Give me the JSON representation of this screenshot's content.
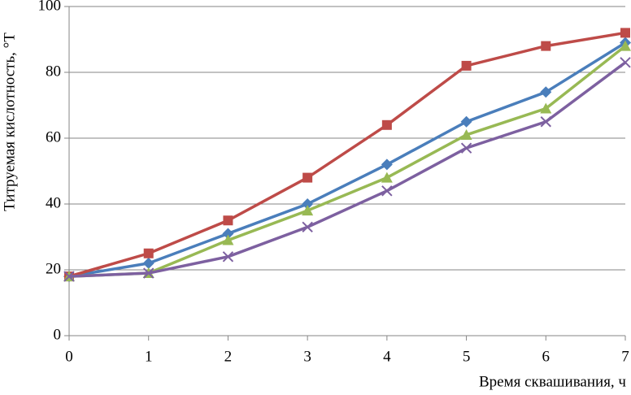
{
  "chart_data": {
    "type": "line",
    "xlabel": "Время сквашивания, ч",
    "ylabel": "Титруемая кислотность, °Т",
    "x": [
      0,
      1,
      2,
      3,
      4,
      5,
      6,
      7
    ],
    "series": [
      {
        "color": "#4a7ebb",
        "marker": "diamond",
        "values": [
          18,
          22,
          31,
          40,
          52,
          65,
          74,
          89
        ]
      },
      {
        "color": "#be4b48",
        "marker": "square",
        "values": [
          18,
          25,
          35,
          48,
          64,
          82,
          88,
          92
        ]
      },
      {
        "color": "#98b954",
        "marker": "triangle",
        "values": [
          18,
          19,
          29,
          38,
          48,
          61,
          69,
          88
        ]
      },
      {
        "color": "#7d60a0",
        "marker": "x",
        "values": [
          18,
          19,
          24,
          33,
          44,
          57,
          65,
          83
        ]
      }
    ],
    "xlim": [
      0,
      7
    ],
    "xticks": [
      0,
      1,
      2,
      3,
      4,
      5,
      6,
      7
    ],
    "ylim": [
      0,
      100
    ],
    "yticks": [
      0,
      20,
      40,
      60,
      80,
      100
    ],
    "grid": true
  }
}
